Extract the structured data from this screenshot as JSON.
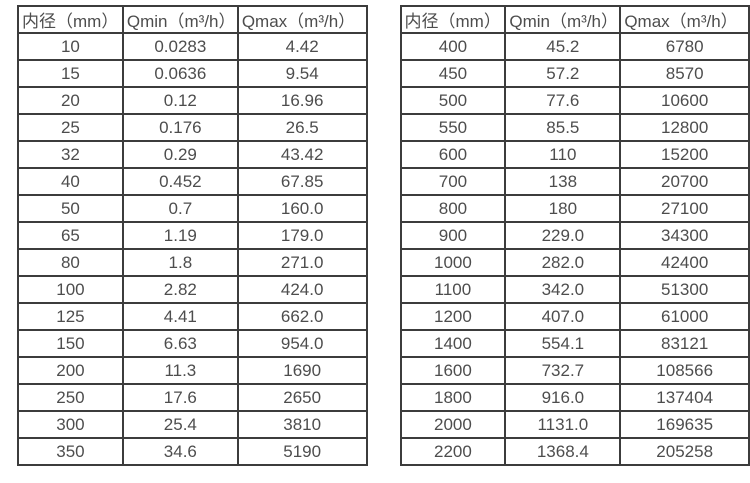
{
  "page": {
    "background_color": "#ffffff",
    "border_color": "#3c3c3c",
    "text_color": "#4d4d4d"
  },
  "tables": [
    {
      "name": "flow-range-table-left",
      "headers": [
        "内径（mm）",
        "Qmin（m³/h）",
        "Qmax（m³/h）"
      ],
      "rows": [
        [
          "10",
          "0.0283",
          "4.42"
        ],
        [
          "15",
          "0.0636",
          "9.54"
        ],
        [
          "20",
          "0.12",
          "16.96"
        ],
        [
          "25",
          "0.176",
          "26.5"
        ],
        [
          "32",
          "0.29",
          "43.42"
        ],
        [
          "40",
          "0.452",
          "67.85"
        ],
        [
          "50",
          "0.7",
          "160.0"
        ],
        [
          "65",
          "1.19",
          "179.0"
        ],
        [
          "80",
          "1.8",
          "271.0"
        ],
        [
          "100",
          "2.82",
          "424.0"
        ],
        [
          "125",
          "4.41",
          "662.0"
        ],
        [
          "150",
          "6.63",
          "954.0"
        ],
        [
          "200",
          "11.3",
          "1690"
        ],
        [
          "250",
          "17.6",
          "2650"
        ],
        [
          "300",
          "25.4",
          "3810"
        ],
        [
          "350",
          "34.6",
          "5190"
        ]
      ]
    },
    {
      "name": "flow-range-table-right",
      "headers": [
        "内径（mm）",
        "Qmin（m³/h）",
        "Qmax（m³/h）"
      ],
      "rows": [
        [
          "400",
          "45.2",
          "6780"
        ],
        [
          "450",
          "57.2",
          "8570"
        ],
        [
          "500",
          "77.6",
          "10600"
        ],
        [
          "550",
          "85.5",
          "12800"
        ],
        [
          "600",
          "110",
          "15200"
        ],
        [
          "700",
          "138",
          "20700"
        ],
        [
          "800",
          "180",
          "27100"
        ],
        [
          "900",
          "229.0",
          "34300"
        ],
        [
          "1000",
          "282.0",
          "42400"
        ],
        [
          "1100",
          "342.0",
          "51300"
        ],
        [
          "1200",
          "407.0",
          "61000"
        ],
        [
          "1400",
          "554.1",
          "83121"
        ],
        [
          "1600",
          "732.7",
          "108566"
        ],
        [
          "1800",
          "916.0",
          "137404"
        ],
        [
          "2000",
          "1131.0",
          "169635"
        ],
        [
          "2200",
          "1368.4",
          "205258"
        ]
      ]
    }
  ]
}
